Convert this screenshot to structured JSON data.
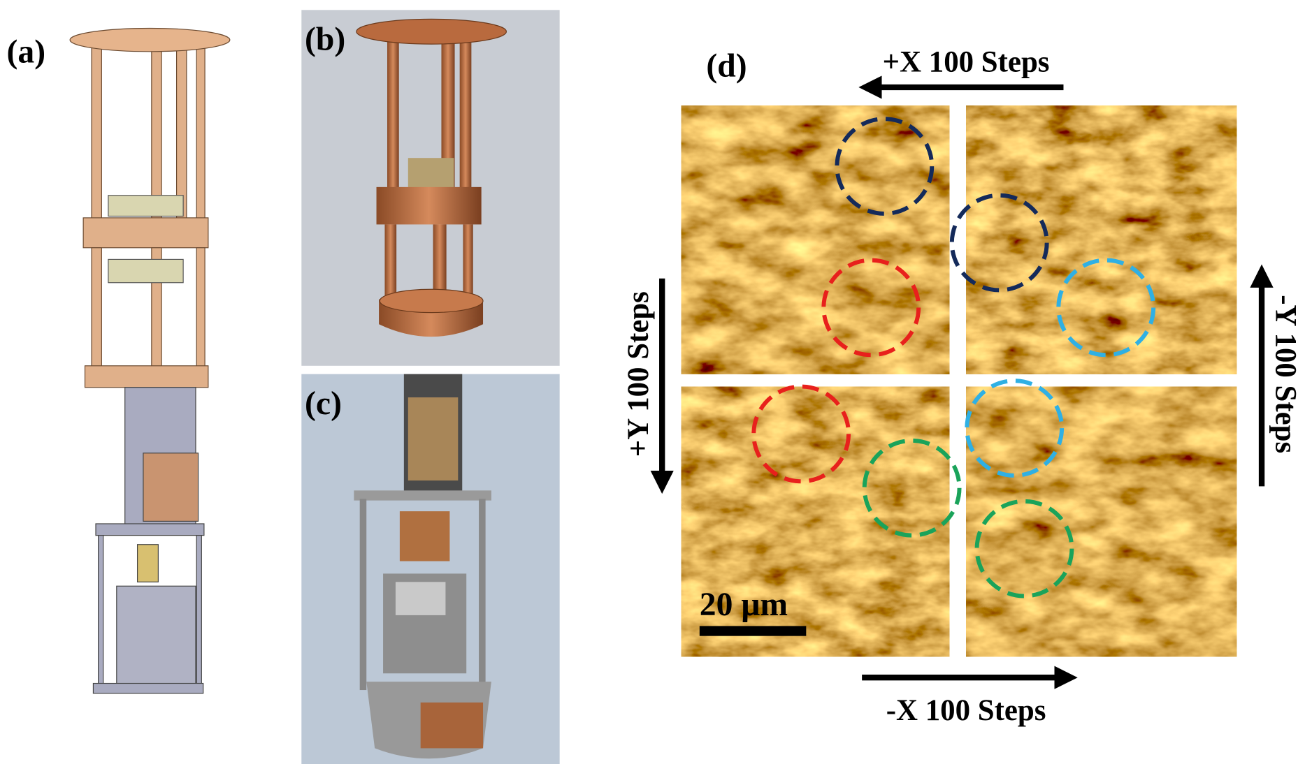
{
  "panels": {
    "a": {
      "label": "(a)"
    },
    "b": {
      "label": "(b)"
    },
    "c": {
      "label": "(c)"
    },
    "d": {
      "label": "(d)",
      "arrows": {
        "plus_x": "+X 100 Steps",
        "minus_x": "-X 100 Steps",
        "plus_y": "+Y 100 Steps",
        "minus_y": "-Y 100 Steps"
      },
      "scale_bar": "20 μm"
    }
  }
}
